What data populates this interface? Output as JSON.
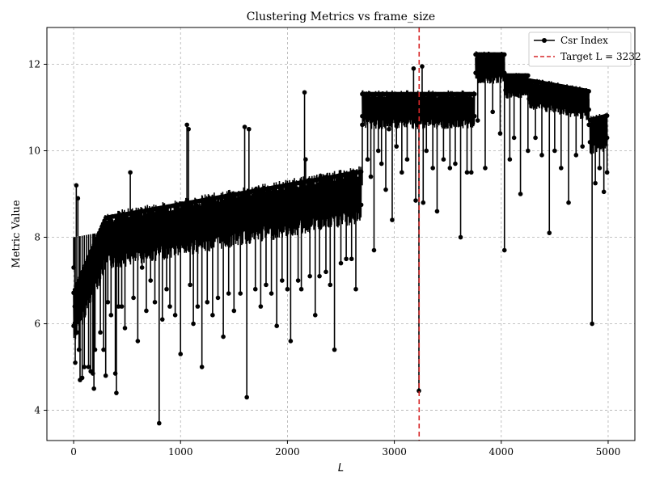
{
  "chart_data": {
    "type": "line",
    "title": "Clustering Metrics vs frame_size",
    "xlabel": "L",
    "ylabel": "Metric Value",
    "xlim": [
      -250,
      5250
    ],
    "ylim": [
      3.3,
      12.85
    ],
    "xticks": [
      0,
      1000,
      2000,
      3000,
      4000,
      5000
    ],
    "yticks": [
      4,
      6,
      8,
      10,
      12
    ],
    "grid": true,
    "legend_position": "top-right",
    "series": [
      {
        "name": "Csr Index",
        "color": "#000000",
        "marker": "circle",
        "segments": [
          {
            "x_start": 0,
            "x_end": 2690,
            "base_start": 8.0,
            "base_end": 9.2,
            "spread": 0.9,
            "rise": 40
          },
          {
            "x_start": 2700,
            "x_end": 3750,
            "base_start": 11.1,
            "base_end": 11.1,
            "spread": 0.6,
            "rise": 0
          },
          {
            "x_start": 3760,
            "x_end": 4030,
            "base_start": 12.05,
            "base_end": 12.05,
            "spread": 0.5,
            "rise": 0
          },
          {
            "x_start": 4040,
            "x_end": 4250,
            "base_start": 11.6,
            "base_end": 11.6,
            "spread": 0.4,
            "rise": 0
          },
          {
            "x_start": 4260,
            "x_end": 4820,
            "base_start": 11.45,
            "base_end": 11.2,
            "spread": 0.5,
            "rise": 0
          },
          {
            "x_start": 4830,
            "x_end": 4990,
            "base_start": 10.5,
            "base_end": 10.6,
            "spread": 0.6,
            "rise": 0
          }
        ],
        "points": [
          [
            0,
            7.3
          ],
          [
            10,
            6.4
          ],
          [
            15,
            5.1
          ],
          [
            25,
            9.2
          ],
          [
            30,
            5.8
          ],
          [
            40,
            8.9
          ],
          [
            50,
            5.4
          ],
          [
            60,
            4.7
          ],
          [
            80,
            4.75
          ],
          [
            100,
            5.0
          ],
          [
            120,
            6.6
          ],
          [
            140,
            5.0
          ],
          [
            160,
            4.9
          ],
          [
            180,
            4.85
          ],
          [
            190,
            4.5
          ],
          [
            200,
            5.4
          ],
          [
            220,
            7.1
          ],
          [
            250,
            5.8
          ],
          [
            280,
            5.4
          ],
          [
            300,
            4.8
          ],
          [
            320,
            6.5
          ],
          [
            350,
            6.2
          ],
          [
            390,
            4.85
          ],
          [
            400,
            4.4
          ],
          [
            420,
            6.4
          ],
          [
            450,
            6.4
          ],
          [
            480,
            5.9
          ],
          [
            530,
            9.5
          ],
          [
            560,
            6.6
          ],
          [
            600,
            5.6
          ],
          [
            640,
            7.3
          ],
          [
            680,
            6.3
          ],
          [
            720,
            7.0
          ],
          [
            760,
            6.5
          ],
          [
            800,
            3.7
          ],
          [
            830,
            6.1
          ],
          [
            870,
            6.8
          ],
          [
            900,
            6.4
          ],
          [
            950,
            6.2
          ],
          [
            1000,
            5.3
          ],
          [
            1060,
            10.6
          ],
          [
            1075,
            10.5
          ],
          [
            1090,
            6.9
          ],
          [
            1120,
            6.0
          ],
          [
            1160,
            6.4
          ],
          [
            1200,
            5.0
          ],
          [
            1250,
            6.5
          ],
          [
            1300,
            6.2
          ],
          [
            1350,
            6.6
          ],
          [
            1400,
            5.7
          ],
          [
            1450,
            6.7
          ],
          [
            1500,
            6.3
          ],
          [
            1560,
            6.7
          ],
          [
            1600,
            10.55
          ],
          [
            1620,
            4.3
          ],
          [
            1640,
            10.5
          ],
          [
            1700,
            6.8
          ],
          [
            1750,
            6.4
          ],
          [
            1800,
            6.9
          ],
          [
            1850,
            6.7
          ],
          [
            1900,
            5.95
          ],
          [
            1950,
            7.0
          ],
          [
            2000,
            6.8
          ],
          [
            2030,
            5.6
          ],
          [
            2100,
            7.0
          ],
          [
            2130,
            6.8
          ],
          [
            2160,
            11.35
          ],
          [
            2170,
            9.8
          ],
          [
            2210,
            7.1
          ],
          [
            2260,
            6.2
          ],
          [
            2300,
            7.1
          ],
          [
            2360,
            7.2
          ],
          [
            2400,
            6.9
          ],
          [
            2440,
            5.4
          ],
          [
            2500,
            7.4
          ],
          [
            2550,
            7.5
          ],
          [
            2600,
            7.5
          ],
          [
            2640,
            6.8
          ],
          [
            2700,
            10.6
          ],
          [
            2750,
            9.8
          ],
          [
            2780,
            9.4
          ],
          [
            2810,
            7.7
          ],
          [
            2850,
            10.0
          ],
          [
            2880,
            9.7
          ],
          [
            2920,
            9.1
          ],
          [
            2950,
            10.5
          ],
          [
            2980,
            8.4
          ],
          [
            3020,
            10.1
          ],
          [
            3070,
            9.5
          ],
          [
            3120,
            9.8
          ],
          [
            3180,
            11.9
          ],
          [
            3200,
            8.85
          ],
          [
            3215,
            10.6
          ],
          [
            3230,
            4.45
          ],
          [
            3240,
            10.7
          ],
          [
            3260,
            11.95
          ],
          [
            3270,
            8.8
          ],
          [
            3300,
            10.0
          ],
          [
            3360,
            9.6
          ],
          [
            3400,
            8.6
          ],
          [
            3460,
            9.8
          ],
          [
            3520,
            9.6
          ],
          [
            3570,
            9.7
          ],
          [
            3620,
            8.0
          ],
          [
            3680,
            9.5
          ],
          [
            3720,
            9.5
          ],
          [
            3780,
            10.7
          ],
          [
            3850,
            9.6
          ],
          [
            3920,
            10.9
          ],
          [
            3990,
            10.4
          ],
          [
            4030,
            7.7
          ],
          [
            4080,
            9.8
          ],
          [
            4120,
            10.3
          ],
          [
            4180,
            9.0
          ],
          [
            4250,
            10.0
          ],
          [
            4320,
            10.3
          ],
          [
            4380,
            9.9
          ],
          [
            4450,
            8.1
          ],
          [
            4500,
            10.0
          ],
          [
            4560,
            9.6
          ],
          [
            4630,
            8.8
          ],
          [
            4700,
            9.9
          ],
          [
            4760,
            10.1
          ],
          [
            4820,
            10.6
          ],
          [
            4850,
            6.0
          ],
          [
            4880,
            9.25
          ],
          [
            4920,
            9.6
          ],
          [
            4960,
            9.05
          ],
          [
            4990,
            9.5
          ]
        ]
      }
    ],
    "annotations": [
      {
        "type": "vline",
        "x": 3232,
        "color": "#d62728",
        "style": "dashed",
        "label": "Target L = 3232"
      }
    ]
  }
}
